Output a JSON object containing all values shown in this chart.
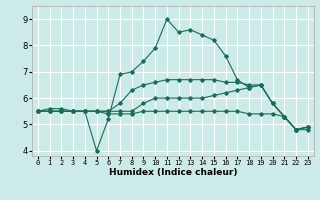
{
  "xlabel": "Humidex (Indice chaleur)",
  "ylabel": "",
  "xlim": [
    -0.5,
    23.5
  ],
  "ylim": [
    3.8,
    9.5
  ],
  "bg_color": "#cceae7",
  "line_color": "#1a6b5a",
  "grid_color": "#ffffff",
  "xticks": [
    0,
    1,
    2,
    3,
    4,
    5,
    6,
    7,
    8,
    9,
    10,
    11,
    12,
    13,
    14,
    15,
    16,
    17,
    18,
    19,
    20,
    21,
    22,
    23
  ],
  "yticks": [
    4,
    5,
    6,
    7,
    8,
    9
  ],
  "lines": [
    {
      "x": [
        0,
        1,
        2,
        3,
        4,
        5,
        6,
        7,
        8,
        9,
        10,
        11,
        12,
        13,
        14,
        15,
        16,
        17,
        18,
        19,
        20,
        21,
        22,
        23
      ],
      "y": [
        5.5,
        5.6,
        5.6,
        5.5,
        5.5,
        4.0,
        5.2,
        6.9,
        7.0,
        7.4,
        7.9,
        9.0,
        8.5,
        8.6,
        8.4,
        8.2,
        7.6,
        6.7,
        6.4,
        6.5,
        5.8,
        5.3,
        4.8,
        4.9
      ]
    },
    {
      "x": [
        0,
        1,
        2,
        3,
        4,
        5,
        6,
        7,
        8,
        9,
        10,
        11,
        12,
        13,
        14,
        15,
        16,
        17,
        18,
        19,
        20,
        21,
        22,
        23
      ],
      "y": [
        5.5,
        5.5,
        5.5,
        5.5,
        5.5,
        5.5,
        5.4,
        5.4,
        5.4,
        5.5,
        5.5,
        5.5,
        5.5,
        5.5,
        5.5,
        5.5,
        5.5,
        5.5,
        5.4,
        5.4,
        5.4,
        5.3,
        4.8,
        4.8
      ]
    },
    {
      "x": [
        0,
        1,
        2,
        3,
        4,
        5,
        6,
        7,
        8,
        9,
        10,
        11,
        12,
        13,
        14,
        15,
        16,
        17,
        18,
        19,
        20,
        21,
        22,
        23
      ],
      "y": [
        5.5,
        5.5,
        5.5,
        5.5,
        5.5,
        5.5,
        5.5,
        5.5,
        5.5,
        5.8,
        6.0,
        6.0,
        6.0,
        6.0,
        6.0,
        6.1,
        6.2,
        6.3,
        6.4,
        6.5,
        5.8,
        5.3,
        4.8,
        4.9
      ]
    },
    {
      "x": [
        0,
        1,
        2,
        3,
        4,
        5,
        6,
        7,
        8,
        9,
        10,
        11,
        12,
        13,
        14,
        15,
        16,
        17,
        18,
        19,
        20,
        21,
        22,
        23
      ],
      "y": [
        5.5,
        5.5,
        5.5,
        5.5,
        5.5,
        5.5,
        5.5,
        5.8,
        6.3,
        6.5,
        6.6,
        6.7,
        6.7,
        6.7,
        6.7,
        6.7,
        6.6,
        6.6,
        6.5,
        6.5,
        5.8,
        5.3,
        4.8,
        4.9
      ]
    }
  ]
}
